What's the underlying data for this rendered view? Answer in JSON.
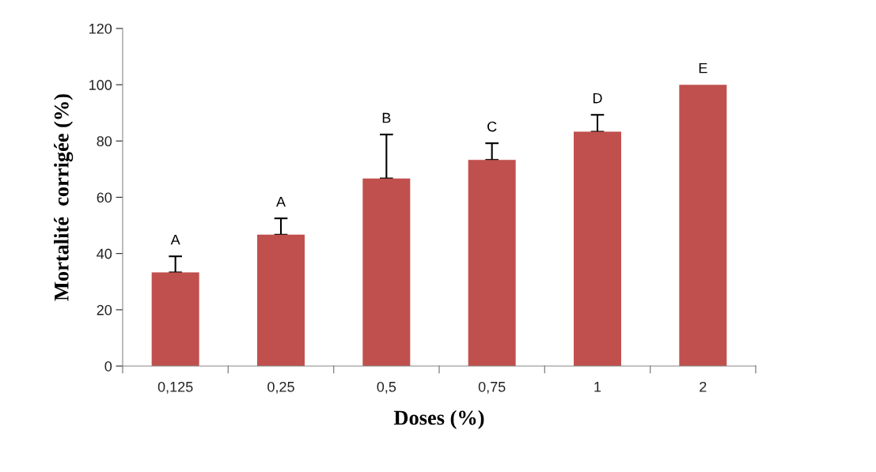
{
  "chart_data": {
    "type": "bar",
    "xlabel": "Doses (%)",
    "ylabel": "Mortalité  corrigée (%)",
    "categories": [
      "0,125",
      "0,25",
      "0,5",
      "0,75",
      "1",
      "2"
    ],
    "values": [
      33.3,
      46.7,
      66.7,
      73.3,
      83.3,
      100
    ],
    "errors": [
      [
        33.3,
        39
      ],
      [
        46.7,
        52.5
      ],
      [
        66.7,
        82.3
      ],
      [
        73.3,
        79.2
      ],
      [
        83.3,
        89.3
      ],
      null
    ],
    "color": "#c0504d",
    "ylim": [
      0,
      120
    ],
    "yticks": [
      0,
      20,
      40,
      60,
      80,
      100,
      120
    ],
    "grid": false,
    "annotations": [
      {
        "text": "A",
        "x": "0,125",
        "y": 39
      },
      {
        "text": "A",
        "x": "0,25",
        "y": 52.5
      },
      {
        "text": "B",
        "x": "0,5",
        "y": 82.3
      },
      {
        "text": "C",
        "x": "0,75",
        "y": 79.2
      },
      {
        "text": "D",
        "x": "1",
        "y": 89.3
      },
      {
        "text": "E",
        "x": "2",
        "y": 100
      }
    ]
  }
}
